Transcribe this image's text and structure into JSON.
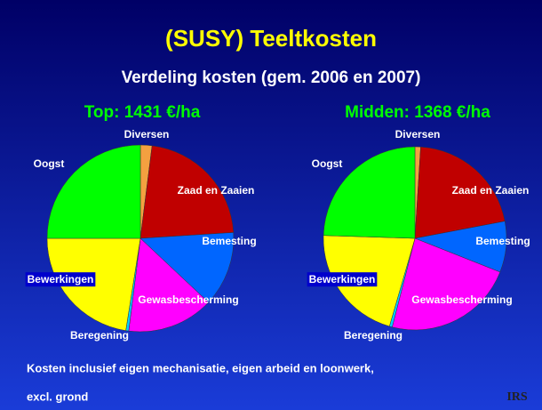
{
  "title": "(SUSY) Teeltkosten",
  "subtitle": "Verdeling kosten (gem. 2006 en 2007)",
  "footer": [
    "Kosten inclusief eigen mechanisatie, eigen arbeid en loonwerk,",
    "excl. grond"
  ],
  "logo": "IRS",
  "chart_data": [
    {
      "type": "pie",
      "title": "Top: 1431 €/ha",
      "categories": [
        "Diversen",
        "Zaad en Zaaien",
        "Bemesting",
        "Gewasbescherming",
        "Beregening",
        "Bewerkingen",
        "Oogst"
      ],
      "values": [
        2,
        22,
        13,
        15,
        0.5,
        22.5,
        25
      ],
      "colors": [
        "#f4a040",
        "#c00000",
        "#0066ff",
        "#ff00ff",
        "#00ccff",
        "#ffff00",
        "#00ff00"
      ]
    },
    {
      "type": "pie",
      "title": "Midden: 1368 €/ha",
      "categories": [
        "Diversen",
        "Zaad en Zaaien",
        "Bemesting",
        "Gewasbescherming",
        "Beregening",
        "Bewerkingen",
        "Oogst"
      ],
      "values": [
        1,
        21,
        9,
        23,
        0.5,
        21,
        24.5
      ],
      "colors": [
        "#f4a040",
        "#c00000",
        "#0066ff",
        "#ff00ff",
        "#00ccff",
        "#ffff00",
        "#00ff00"
      ]
    }
  ]
}
